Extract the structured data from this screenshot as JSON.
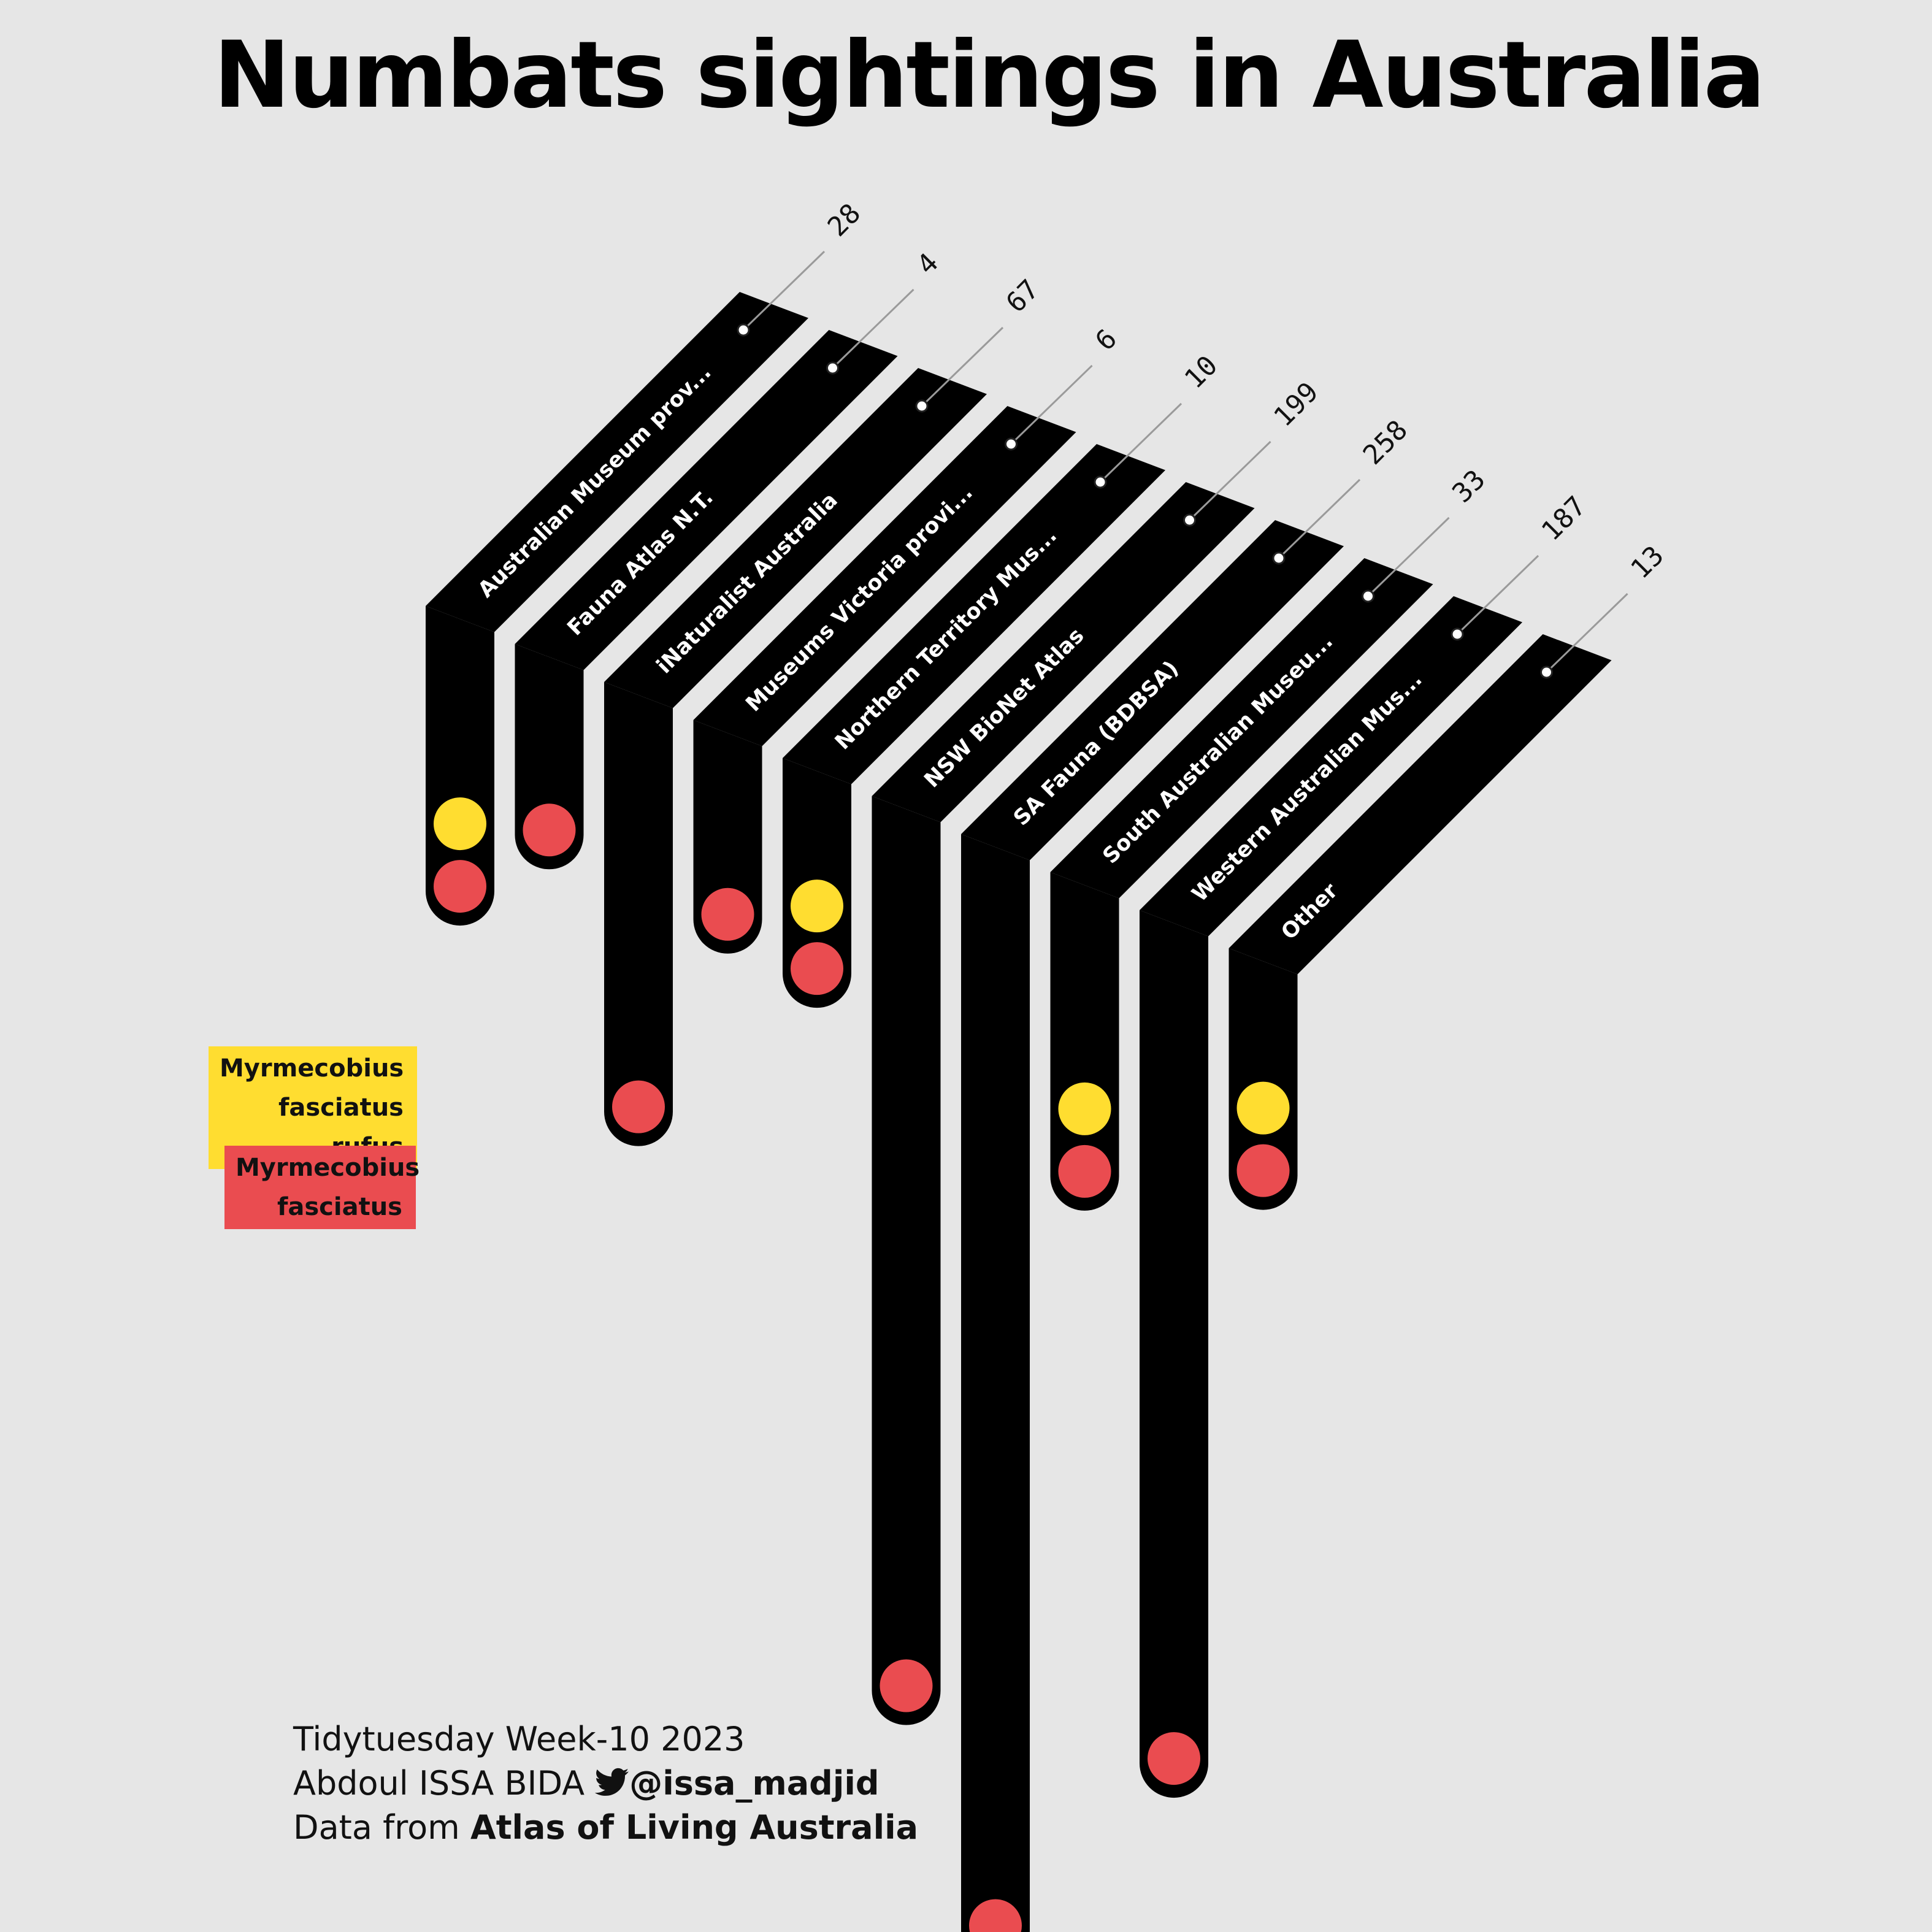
{
  "chart_data": {
    "type": "bar",
    "title": "Numbats sightings in Australia",
    "categories": [
      "Australian Museum prov...",
      "Fauna Atlas N.T.",
      "iNaturalist Australia",
      "Museums Victoria provi...",
      "Northern Territory Mus...",
      "NSW BioNet Atlas",
      "SA Fauna (BDBSA)",
      "South Australian Museu...",
      "Western Australian Mus...",
      "Other"
    ],
    "totals": [
      28,
      4,
      67,
      6,
      10,
      199,
      258,
      33,
      187,
      13
    ],
    "series": [
      {
        "name": "Myrmecobius fasciatus rufus",
        "color": "#ffdd30",
        "present": [
          true,
          false,
          false,
          false,
          true,
          false,
          false,
          true,
          false,
          true
        ]
      },
      {
        "name": "Myrmecobius fasciatus",
        "color": "#ea4c50",
        "present": [
          true,
          true,
          true,
          true,
          true,
          true,
          true,
          true,
          true,
          true
        ]
      }
    ],
    "xlabel": "",
    "ylabel": ""
  },
  "legend": {
    "rufus_line1": "Myrmecobius",
    "rufus_line2": "fasciatus rufus",
    "fasciatus_line1": "Myrmecobius",
    "fasciatus_line2": "fasciatus"
  },
  "caption": {
    "line1": "Tidytuesday Week-10 2023",
    "author": "Abdoul ISSA BIDA",
    "handle": "@issa_madjid",
    "source_prefix": "Data from ",
    "source": "Atlas of Living Australia"
  },
  "colors": {
    "background": "#e6e6e6",
    "bar": "#000000",
    "rufus": "#ffdd30",
    "fasciatus": "#ea4c50"
  }
}
